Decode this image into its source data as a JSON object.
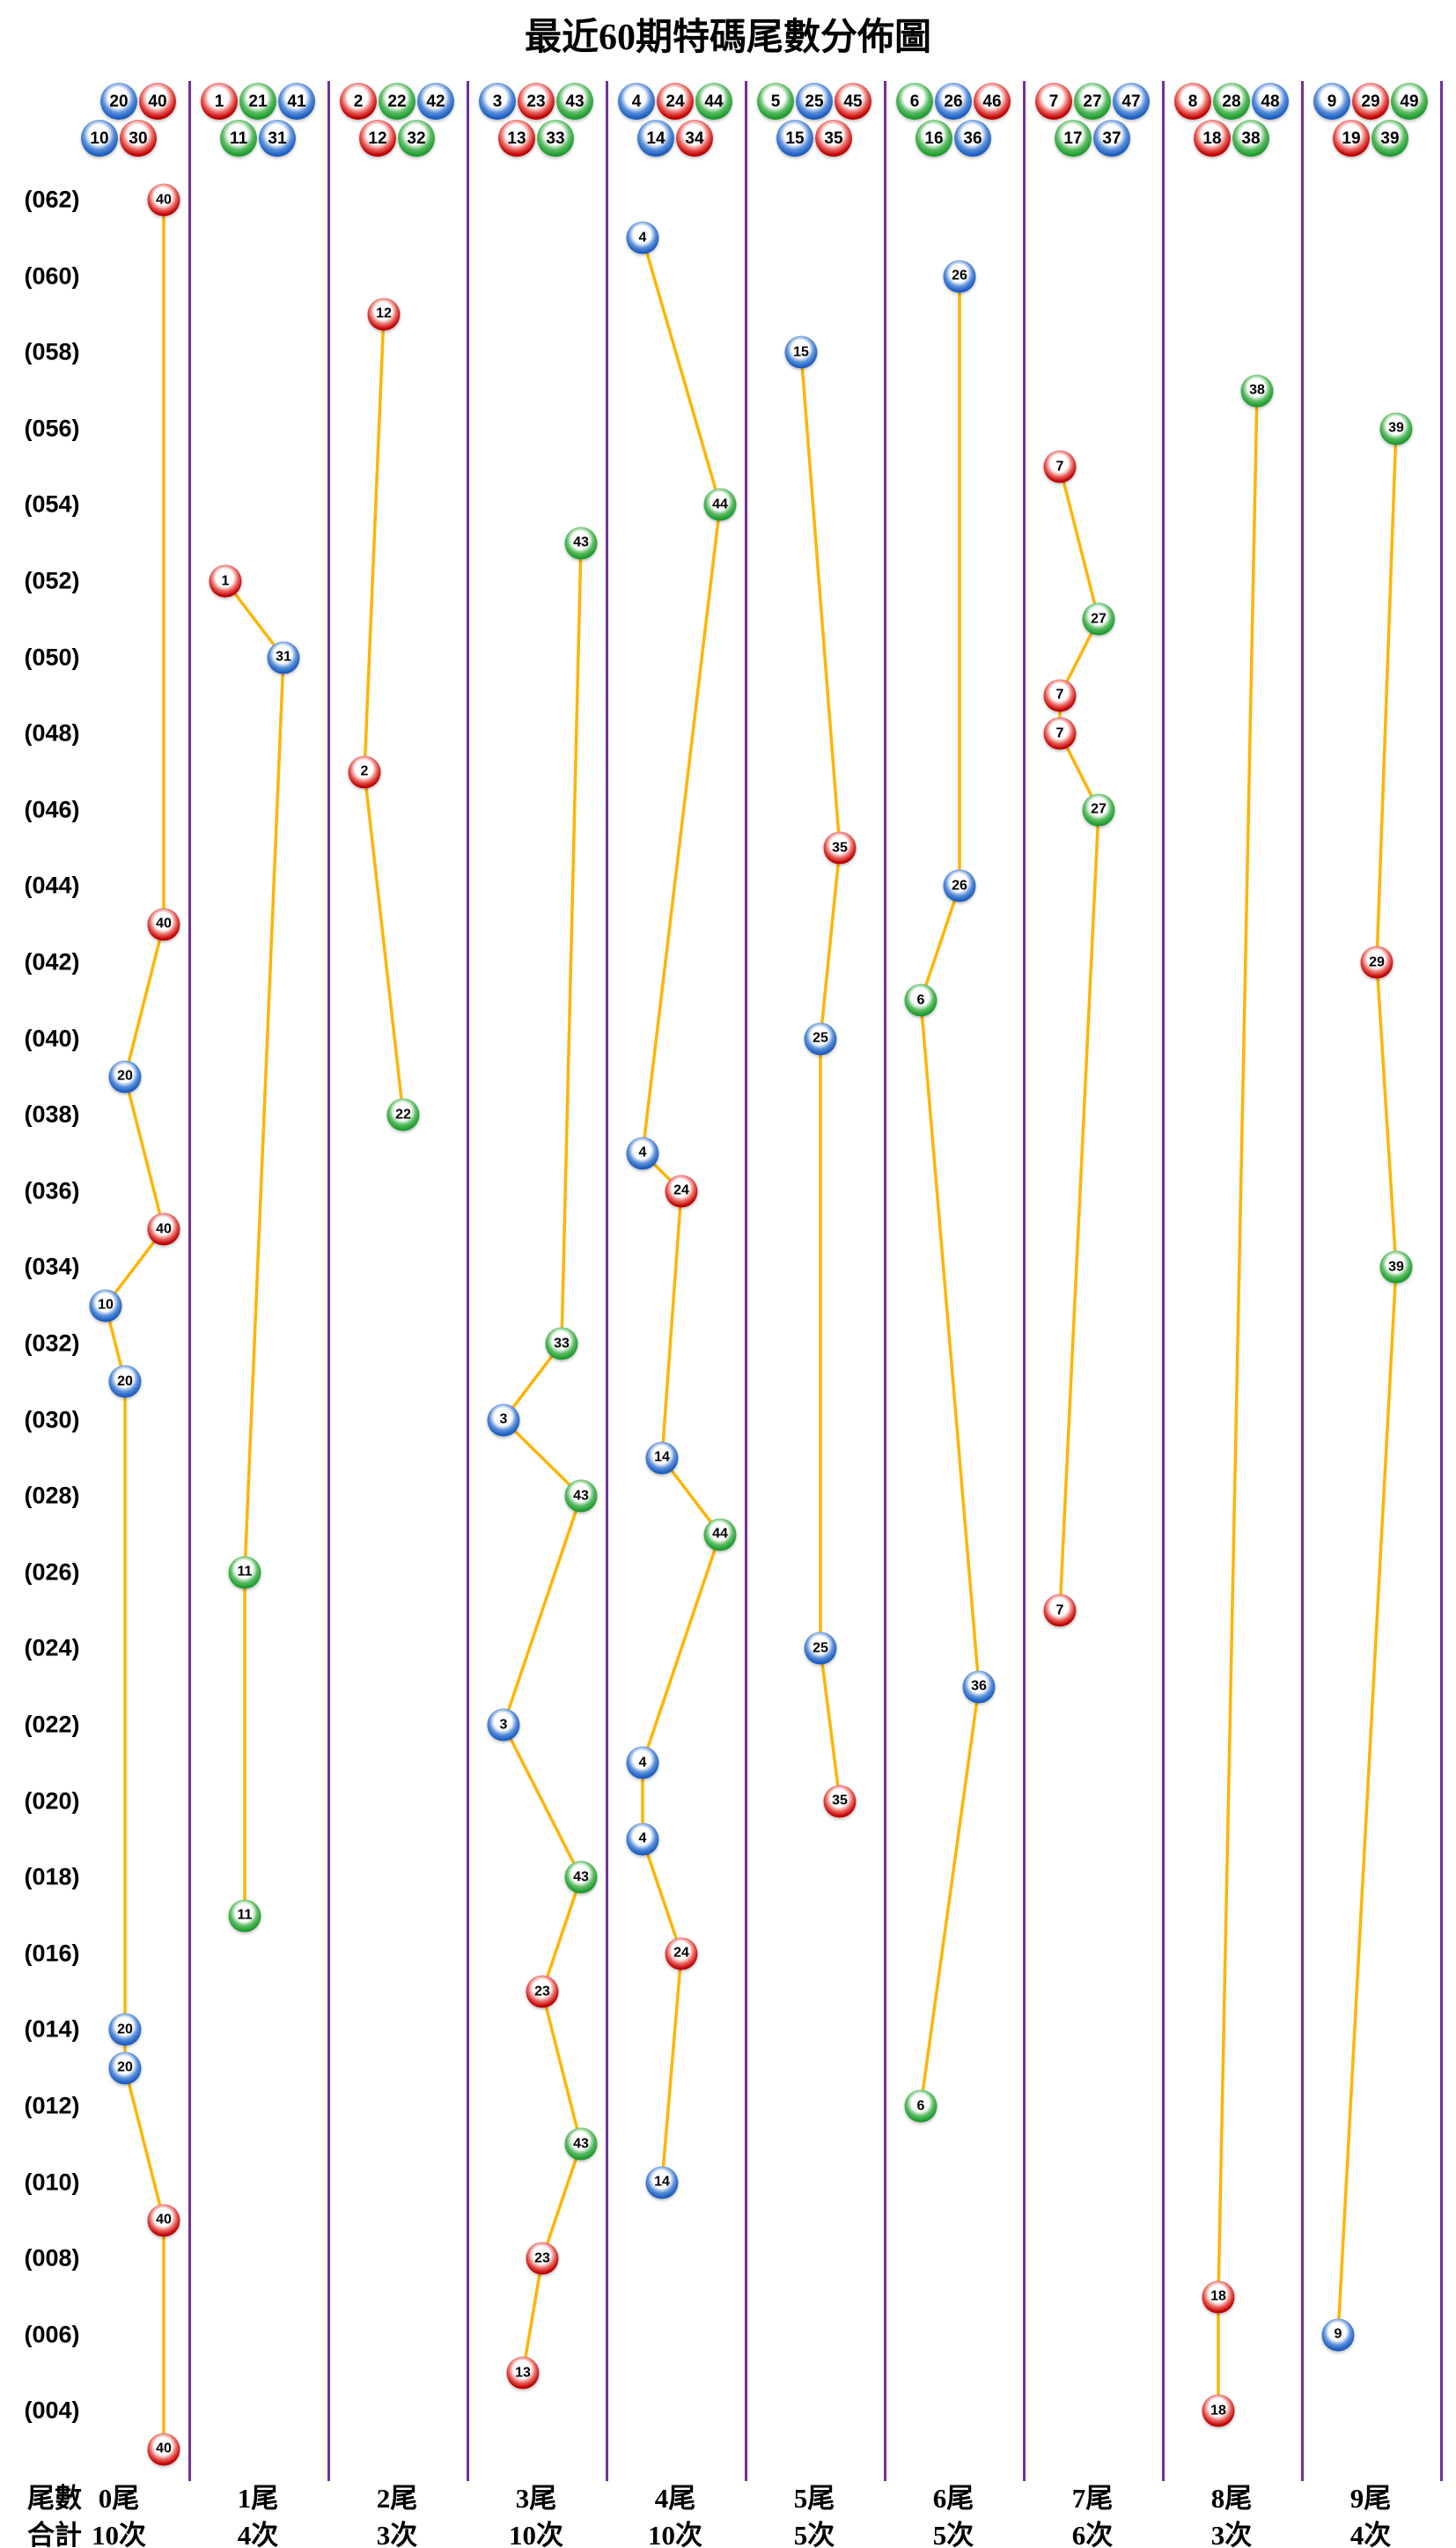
{
  "title": "最近60期特碼尾數分佈圖",
  "footer": {
    "tail_label": "尾數",
    "total_label": "合計"
  },
  "colors": {
    "line": "#FFB400",
    "divider": "#7030A0",
    "ball_red": "#C00000",
    "ball_blue": "#1D5FC2",
    "ball_green": "#1E9E30",
    "text": "#000000"
  },
  "ball_color_groups": {
    "red": [
      1,
      2,
      7,
      8,
      12,
      13,
      18,
      19,
      23,
      24,
      29,
      30,
      34,
      35,
      40,
      45,
      46
    ],
    "blue": [
      3,
      4,
      9,
      10,
      14,
      15,
      20,
      25,
      26,
      31,
      36,
      37,
      41,
      42,
      47,
      48
    ],
    "green": [
      5,
      6,
      11,
      16,
      17,
      21,
      22,
      27,
      28,
      32,
      33,
      38,
      39,
      43,
      44,
      49
    ]
  },
  "chart_data": {
    "type": "scatter",
    "title": "最近60期特碼尾數分佈圖",
    "y_axis_ticks": [
      "(062)",
      "(060)",
      "(058)",
      "(056)",
      "(054)",
      "(052)",
      "(050)",
      "(048)",
      "(046)",
      "(044)",
      "(042)",
      "(040)",
      "(038)",
      "(036)",
      "(034)",
      "(032)",
      "(030)",
      "(028)",
      "(026)",
      "(024)",
      "(022)",
      "(020)",
      "(018)",
      "(016)",
      "(014)",
      "(012)",
      "(010)",
      "(008)",
      "(006)",
      "(004)"
    ],
    "y_tick_values": [
      62,
      60,
      58,
      56,
      54,
      52,
      50,
      48,
      46,
      44,
      42,
      40,
      38,
      36,
      34,
      32,
      30,
      28,
      26,
      24,
      22,
      20,
      18,
      16,
      14,
      12,
      10,
      8,
      6,
      4
    ],
    "y_range": [
      3,
      62
    ],
    "grid": false,
    "legend": false,
    "columns": [
      {
        "tail": "0尾",
        "count": "10次",
        "header_numbers": [
          10,
          20,
          30,
          40
        ],
        "points": [
          [
            40,
            62
          ],
          [
            40,
            43
          ],
          [
            20,
            39
          ],
          [
            40,
            35
          ],
          [
            10,
            33
          ],
          [
            20,
            31
          ],
          [
            20,
            14
          ],
          [
            20,
            13
          ],
          [
            40,
            9
          ],
          [
            40,
            3
          ]
        ]
      },
      {
        "tail": "1尾",
        "count": "4次",
        "header_numbers": [
          1,
          11,
          21,
          31,
          41
        ],
        "points": [
          [
            1,
            52
          ],
          [
            31,
            50
          ],
          [
            11,
            26
          ],
          [
            11,
            17
          ]
        ]
      },
      {
        "tail": "2尾",
        "count": "3次",
        "header_numbers": [
          2,
          12,
          22,
          32,
          42
        ],
        "points": [
          [
            12,
            59
          ],
          [
            2,
            47
          ],
          [
            22,
            38
          ]
        ]
      },
      {
        "tail": "3尾",
        "count": "10次",
        "header_numbers": [
          3,
          13,
          23,
          33,
          43
        ],
        "points": [
          [
            43,
            53
          ],
          [
            33,
            32
          ],
          [
            3,
            30
          ],
          [
            43,
            28
          ],
          [
            3,
            22
          ],
          [
            43,
            18
          ],
          [
            23,
            15
          ],
          [
            43,
            11
          ],
          [
            23,
            8
          ],
          [
            13,
            5
          ]
        ]
      },
      {
        "tail": "4尾",
        "count": "10次",
        "header_numbers": [
          4,
          14,
          24,
          34,
          44
        ],
        "points": [
          [
            4,
            61
          ],
          [
            44,
            54
          ],
          [
            4,
            37
          ],
          [
            24,
            36
          ],
          [
            14,
            29
          ],
          [
            44,
            27
          ],
          [
            4,
            21
          ],
          [
            4,
            19
          ],
          [
            24,
            16
          ],
          [
            14,
            10
          ]
        ]
      },
      {
        "tail": "5尾",
        "count": "5次",
        "header_numbers": [
          5,
          15,
          25,
          35,
          45
        ],
        "points": [
          [
            15,
            58
          ],
          [
            35,
            45
          ],
          [
            25,
            40
          ],
          [
            25,
            24
          ],
          [
            35,
            20
          ]
        ]
      },
      {
        "tail": "6尾",
        "count": "5次",
        "header_numbers": [
          6,
          16,
          26,
          36,
          46
        ],
        "points": [
          [
            26,
            60
          ],
          [
            26,
            44
          ],
          [
            6,
            41
          ],
          [
            36,
            23
          ],
          [
            6,
            12
          ]
        ]
      },
      {
        "tail": "7尾",
        "count": "6次",
        "header_numbers": [
          7,
          17,
          27,
          37,
          47
        ],
        "points": [
          [
            7,
            55
          ],
          [
            27,
            51
          ],
          [
            7,
            49
          ],
          [
            7,
            48
          ],
          [
            27,
            46
          ],
          [
            7,
            25
          ]
        ]
      },
      {
        "tail": "8尾",
        "count": "3次",
        "header_numbers": [
          8,
          18,
          28,
          38,
          48
        ],
        "points": [
          [
            38,
            57
          ],
          [
            18,
            7
          ],
          [
            18,
            4
          ]
        ]
      },
      {
        "tail": "9尾",
        "count": "4次",
        "header_numbers": [
          9,
          19,
          29,
          39,
          49
        ],
        "points": [
          [
            39,
            56
          ],
          [
            29,
            42
          ],
          [
            39,
            34
          ],
          [
            9,
            6
          ]
        ]
      }
    ]
  }
}
